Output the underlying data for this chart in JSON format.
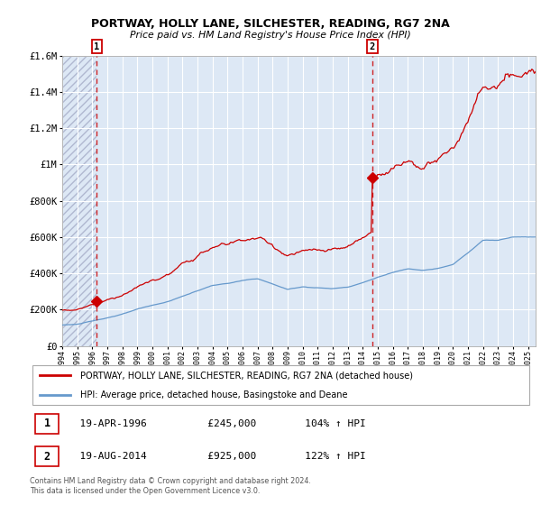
{
  "title1": "PORTWAY, HOLLY LANE, SILCHESTER, READING, RG7 2NA",
  "title2": "Price paid vs. HM Land Registry's House Price Index (HPI)",
  "sale1_year": 1996.3,
  "sale1_price": 245000,
  "sale2_year": 2014.63,
  "sale2_price": 925000,
  "legend1": "PORTWAY, HOLLY LANE, SILCHESTER, READING, RG7 2NA (detached house)",
  "legend2": "HPI: Average price, detached house, Basingstoke and Deane",
  "footnote": "Contains HM Land Registry data © Crown copyright and database right 2024.\nThis data is licensed under the Open Government Licence v3.0.",
  "hpi_color": "#6699cc",
  "price_color": "#cc0000",
  "bg_color": "#dde8f5",
  "hatch_color": "#b0b8d0",
  "ylim": [
    0,
    1600000
  ],
  "yticks": [
    0,
    200000,
    400000,
    600000,
    800000,
    1000000,
    1200000,
    1400000,
    1600000
  ],
  "xlim_start": 1994,
  "xlim_end": 2025.5
}
